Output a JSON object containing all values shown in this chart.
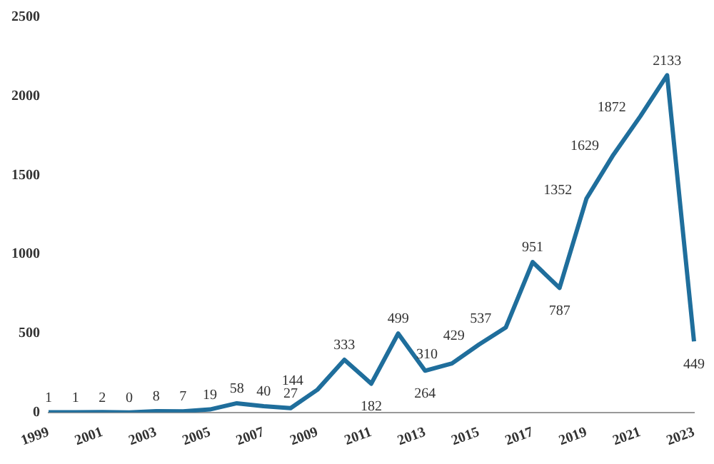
{
  "chart_data": {
    "type": "line",
    "categories": [
      "1999",
      null,
      "2001",
      null,
      "2003",
      null,
      "2005",
      null,
      "2007",
      null,
      "2009",
      null,
      "2011",
      null,
      "2013",
      null,
      "2015",
      null,
      "2017",
      null,
      "2019",
      null,
      "2021",
      null,
      "2023"
    ],
    "series": [
      {
        "color": "#1f6e9c",
        "values": [
          1,
          1,
          2,
          0,
          8,
          7,
          19,
          58,
          40,
          27,
          144,
          333,
          182,
          499,
          264,
          310,
          429,
          537,
          951,
          787,
          1352,
          1629,
          1872,
          2133,
          449
        ]
      }
    ],
    "ylim": [
      0,
      2500
    ],
    "yticks": [
      0,
      500,
      1000,
      1500,
      2000,
      2500
    ],
    "grid": false,
    "legend": false,
    "marker": "none",
    "line_style": "solid",
    "data_labels": true
  }
}
